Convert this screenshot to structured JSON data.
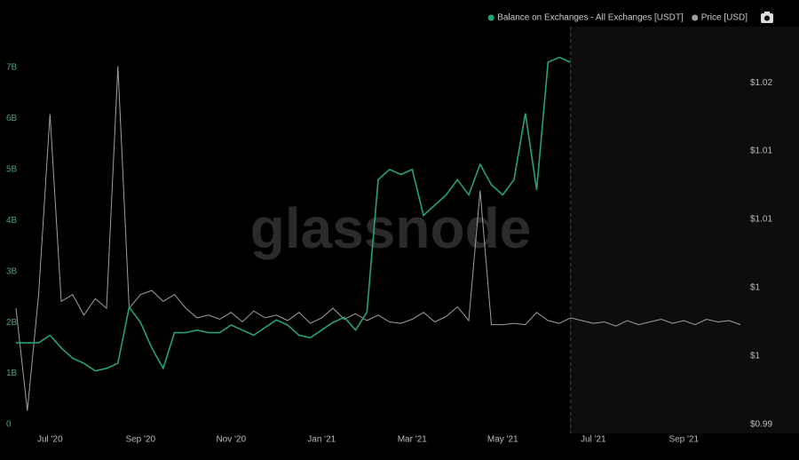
{
  "chart_data": {
    "type": "line",
    "watermark": "glassnode",
    "legend": "top-right",
    "categories": [
      null,
      null,
      null,
      "Jul '20",
      null,
      null,
      null,
      null,
      null,
      null,
      null,
      "Sep '20",
      null,
      null,
      null,
      null,
      null,
      null,
      null,
      "Nov '20",
      null,
      null,
      null,
      null,
      null,
      null,
      null,
      "Jan '21",
      null,
      null,
      null,
      null,
      null,
      null,
      null,
      "Mar '21",
      null,
      null,
      null,
      null,
      null,
      null,
      null,
      "May '21",
      null,
      null,
      null,
      null,
      null,
      null,
      null,
      "Jul '21",
      null,
      null,
      null,
      null,
      null,
      null,
      null,
      "Sep '21",
      null,
      null,
      null,
      null,
      null
    ],
    "series": [
      {
        "name": "Balance on Exchanges - All Exchanges [USDT]",
        "color": "#26a17b",
        "axis": "y",
        "values": [
          1.6,
          1.6,
          1.6,
          1.75,
          1.5,
          1.3,
          1.2,
          1.05,
          1.1,
          1.2,
          2.3,
          2.0,
          1.5,
          1.1,
          1.8,
          1.8,
          1.85,
          1.8,
          1.8,
          1.95,
          1.85,
          1.75,
          1.9,
          2.05,
          1.95,
          1.75,
          1.7,
          1.85,
          2.0,
          2.1,
          1.85,
          2.2,
          4.8,
          5.0,
          4.9,
          5.0,
          4.1,
          4.3,
          4.5,
          4.8,
          4.5,
          5.1,
          4.7,
          4.5,
          4.8,
          6.1,
          4.6,
          7.1,
          7.2,
          7.1,
          null,
          null,
          null,
          null,
          null,
          null,
          null,
          null,
          null,
          null,
          null,
          null,
          null,
          null,
          null
        ]
      },
      {
        "name": "Price [USD]",
        "color": "#a0a0a0",
        "axis": "y2",
        "values": [
          0.9985,
          0.991,
          0.9995,
          1.0127,
          0.999,
          0.9995,
          0.998,
          0.9992,
          0.9985,
          1.0162,
          0.9985,
          0.9995,
          0.9998,
          0.999,
          0.9995,
          0.9985,
          0.9978,
          0.998,
          0.9977,
          0.9982,
          0.9975,
          0.9983,
          0.9978,
          0.998,
          0.9976,
          0.9982,
          0.9974,
          0.9978,
          0.9985,
          0.9977,
          0.9981,
          0.9976,
          0.998,
          0.9975,
          0.9974,
          0.9977,
          0.9982,
          0.9975,
          0.9979,
          0.9986,
          0.9976,
          1.0071,
          0.9973,
          0.9973,
          0.9974,
          0.9973,
          0.9982,
          0.9976,
          0.9974,
          0.9978,
          0.9976,
          0.9974,
          0.9975,
          0.9972,
          0.9976,
          0.9973,
          0.9975,
          0.9977,
          0.9974,
          0.9976,
          0.9973,
          0.9977,
          0.9975,
          0.9976,
          0.9973
        ]
      }
    ],
    "ylim": [
      0,
      7.8
    ],
    "yticks": [
      0,
      {
        "value": 1,
        "label": "1B"
      },
      {
        "value": 2,
        "label": "2B"
      },
      {
        "value": 3,
        "label": "3B"
      },
      {
        "value": 4,
        "label": "4B"
      },
      {
        "value": 5,
        "label": "5B"
      },
      {
        "value": 6,
        "label": "6B"
      },
      {
        "value": 7,
        "label": "7B"
      }
    ],
    "y2lim": [
      0.99,
      1.0191
    ],
    "y2ticks": [
      {
        "value": 0.99,
        "label": "$0.99"
      },
      {
        "value": 0.995,
        "label": "$1"
      },
      {
        "value": 1.0,
        "label": "$1"
      },
      {
        "value": 1.005,
        "label": "$1.01"
      },
      {
        "value": 1.01,
        "label": "$1.01"
      },
      {
        "value": 1.015,
        "label": "$1.02"
      }
    ]
  }
}
